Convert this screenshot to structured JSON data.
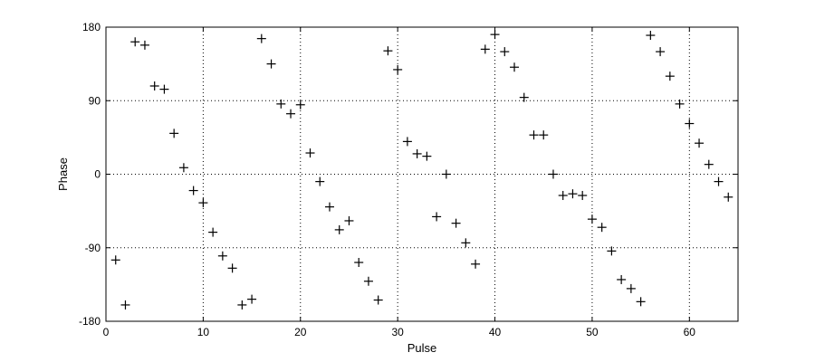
{
  "chart_data": {
    "type": "scatter",
    "title": "",
    "xlabel": "Pulse",
    "ylabel": "Phase",
    "xlim": [
      0,
      65
    ],
    "ylim": [
      -180,
      180
    ],
    "xticks": [
      0,
      10,
      20,
      30,
      40,
      50,
      60
    ],
    "yticks": [
      -180,
      -90,
      0,
      90,
      180
    ],
    "xtick_labels": [
      "0",
      "10",
      "20",
      "30",
      "40",
      "50",
      "60"
    ],
    "ytick_labels": [
      "-180",
      "-90",
      "0",
      "90",
      "180"
    ],
    "grid": true,
    "marker": "+",
    "marker_color": "#000000",
    "series": [
      {
        "x": [
          1,
          2,
          3,
          4,
          5,
          6,
          7,
          8,
          9,
          10,
          11,
          12,
          13,
          14,
          15,
          16,
          17,
          18,
          19,
          20,
          21,
          22,
          23,
          24,
          25,
          26,
          27,
          28,
          29,
          30,
          31,
          32,
          33,
          34,
          35,
          36,
          37,
          38,
          39,
          40,
          41,
          42,
          43,
          44,
          45,
          46,
          47,
          48,
          49,
          50,
          51,
          52,
          53,
          54,
          55,
          56,
          57,
          58,
          59,
          60,
          61,
          62,
          63,
          64
        ],
        "y": [
          -105,
          -160,
          162,
          158,
          108,
          104,
          50,
          8,
          -20,
          -35,
          -71,
          -100,
          -115,
          -160,
          -153,
          166,
          135,
          86,
          74,
          85,
          26,
          -9,
          -40,
          -68,
          -57,
          -108,
          -131,
          -154,
          151,
          128,
          40,
          25,
          22,
          -52,
          0,
          -60,
          -84,
          -110,
          153,
          171,
          150,
          131,
          94,
          48,
          48,
          0,
          -26,
          -24,
          -26,
          -55,
          -65,
          -94,
          -129,
          -140,
          -156,
          170,
          150,
          120,
          86,
          62,
          38,
          12,
          -9,
          -28
        ]
      }
    ]
  }
}
